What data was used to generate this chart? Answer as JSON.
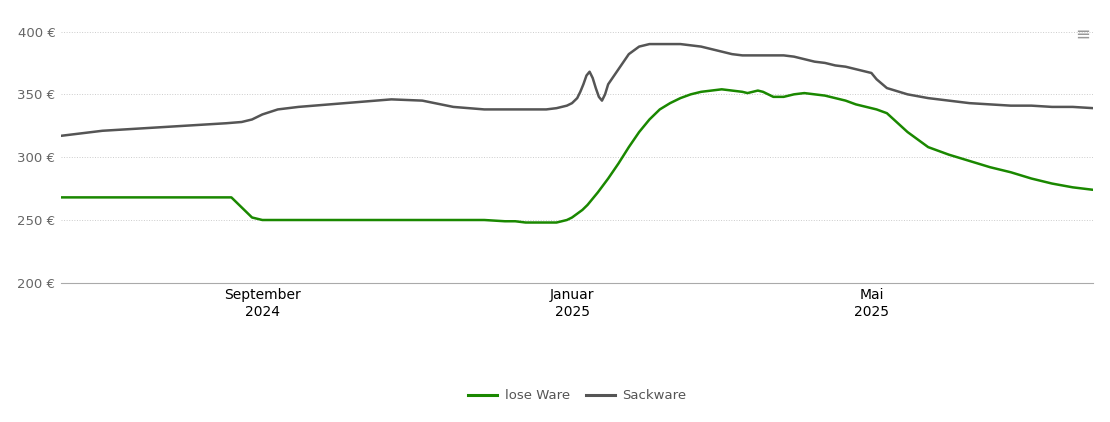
{
  "background_color": "#ffffff",
  "grid_color": "#cccccc",
  "grid_style": "dotted",
  "line_lose_ware_color": "#1a8800",
  "line_sackware_color": "#555555",
  "legend_labels": [
    "lose Ware",
    "Sackware"
  ],
  "ylim": [
    190,
    415
  ],
  "yticks": [
    200,
    250,
    300,
    350,
    400
  ],
  "ytick_labels": [
    "200 €",
    "250 €",
    "300 €",
    "350 €",
    "400 €"
  ],
  "xlim": [
    0.0,
    1.0
  ],
  "x_tick_positions": [
    0.195,
    0.495,
    0.785
  ],
  "x_tick_labels": [
    "September\n2024",
    "Januar\n2025",
    "Mai\n2025"
  ],
  "lose_ware_x": [
    0.0,
    0.02,
    0.06,
    0.1,
    0.14,
    0.165,
    0.175,
    0.185,
    0.195,
    0.21,
    0.23,
    0.26,
    0.29,
    0.32,
    0.35,
    0.38,
    0.41,
    0.43,
    0.44,
    0.45,
    0.46,
    0.47,
    0.48,
    0.49,
    0.495,
    0.5,
    0.505,
    0.51,
    0.515,
    0.52,
    0.53,
    0.54,
    0.55,
    0.56,
    0.57,
    0.58,
    0.59,
    0.6,
    0.61,
    0.62,
    0.63,
    0.64,
    0.65,
    0.66,
    0.665,
    0.67,
    0.675,
    0.68,
    0.69,
    0.7,
    0.71,
    0.72,
    0.73,
    0.74,
    0.75,
    0.76,
    0.77,
    0.78,
    0.79,
    0.8,
    0.82,
    0.84,
    0.86,
    0.88,
    0.9,
    0.92,
    0.94,
    0.96,
    0.98,
    1.0
  ],
  "lose_ware_y": [
    268,
    268,
    268,
    268,
    268,
    268,
    260,
    252,
    250,
    250,
    250,
    250,
    250,
    250,
    250,
    250,
    250,
    249,
    249,
    248,
    248,
    248,
    248,
    250,
    252,
    255,
    258,
    262,
    267,
    272,
    283,
    295,
    308,
    320,
    330,
    338,
    343,
    347,
    350,
    352,
    353,
    354,
    353,
    352,
    351,
    352,
    353,
    352,
    348,
    348,
    350,
    351,
    350,
    349,
    347,
    345,
    342,
    340,
    338,
    335,
    320,
    308,
    302,
    297,
    292,
    288,
    283,
    279,
    276,
    274
  ],
  "sackware_x": [
    0.0,
    0.02,
    0.04,
    0.06,
    0.08,
    0.1,
    0.12,
    0.14,
    0.16,
    0.175,
    0.185,
    0.195,
    0.21,
    0.23,
    0.26,
    0.29,
    0.32,
    0.35,
    0.38,
    0.41,
    0.43,
    0.45,
    0.46,
    0.47,
    0.48,
    0.49,
    0.495,
    0.5,
    0.503,
    0.506,
    0.509,
    0.512,
    0.515,
    0.518,
    0.521,
    0.524,
    0.527,
    0.53,
    0.54,
    0.55,
    0.56,
    0.57,
    0.58,
    0.59,
    0.6,
    0.61,
    0.62,
    0.63,
    0.64,
    0.65,
    0.66,
    0.67,
    0.68,
    0.69,
    0.7,
    0.71,
    0.72,
    0.73,
    0.74,
    0.75,
    0.76,
    0.77,
    0.78,
    0.785,
    0.79,
    0.8,
    0.82,
    0.84,
    0.86,
    0.88,
    0.9,
    0.92,
    0.94,
    0.96,
    0.98,
    1.0
  ],
  "sackware_y": [
    317,
    319,
    321,
    322,
    323,
    324,
    325,
    326,
    327,
    328,
    330,
    334,
    338,
    340,
    342,
    344,
    346,
    345,
    340,
    338,
    338,
    338,
    338,
    338,
    339,
    341,
    343,
    347,
    352,
    358,
    365,
    368,
    363,
    355,
    348,
    345,
    350,
    358,
    370,
    382,
    388,
    390,
    390,
    390,
    390,
    389,
    388,
    386,
    384,
    382,
    381,
    381,
    381,
    381,
    381,
    380,
    378,
    376,
    375,
    373,
    372,
    370,
    368,
    367,
    362,
    355,
    350,
    347,
    345,
    343,
    342,
    341,
    341,
    340,
    340,
    339
  ]
}
